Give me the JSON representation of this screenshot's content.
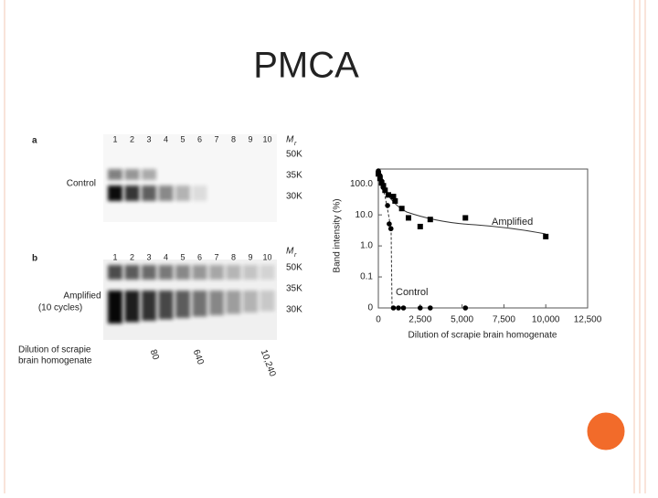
{
  "title": "PMCA",
  "gels": {
    "panel_a": "a",
    "panel_b": "b",
    "lanes": [
      "1",
      "2",
      "3",
      "4",
      "5",
      "6",
      "7",
      "8",
      "9",
      "10"
    ],
    "mr_label": "M",
    "mr_sub": "r",
    "markers": [
      "50K",
      "35K",
      "30K"
    ],
    "control_label": "Control",
    "amplified_label": [
      "Amplified",
      "(10 cycles)"
    ],
    "dilution_label": [
      "Dilution of scrapie",
      "brain homogenate"
    ],
    "dilutions": [
      "80",
      "640",
      "10,240"
    ]
  },
  "chart_data": {
    "type": "scatter",
    "y_label": "Band intensity (%)",
    "x_label": "Dilution of scrapie brain homogenate",
    "yscale": "log-with-zero",
    "xlim": [
      0,
      12500
    ],
    "xticks": [
      0,
      {
        "value": 2500,
        "label": "2,500"
      },
      {
        "value": 5000,
        "label": "5,000"
      },
      {
        "value": 7500,
        "label": "7,500"
      },
      {
        "value": 10000,
        "label": "10,000"
      },
      {
        "value": 12500,
        "label": "12,500"
      }
    ],
    "ylim": [
      0,
      300
    ],
    "yticks": [
      0,
      0.1,
      {
        "value": 1,
        "label": "1.0"
      },
      {
        "value": 10,
        "label": "10.0"
      },
      {
        "value": 100,
        "label": "100.0"
      }
    ],
    "series": [
      {
        "name": "Amplified",
        "color": "#000000",
        "marker": "square",
        "x": [
          0,
          100,
          200,
          300,
          400,
          600,
          900,
          1000,
          1400,
          1800,
          2500,
          3100,
          5200,
          10000
        ],
        "values": [
          210,
          150,
          107,
          87,
          62,
          44,
          39,
          28,
          16,
          8,
          4.2,
          7.1,
          8,
          2
        ]
      },
      {
        "name": "Control",
        "color": "#000000",
        "marker": "circle",
        "x": [
          0,
          100,
          200,
          300,
          550,
          650,
          750,
          900,
          1200,
          1500,
          2500,
          3100,
          5200
        ],
        "values": [
          260,
          184,
          122,
          76,
          20,
          5.1,
          3.6,
          0,
          0,
          0,
          0,
          0,
          0
        ]
      }
    ]
  }
}
